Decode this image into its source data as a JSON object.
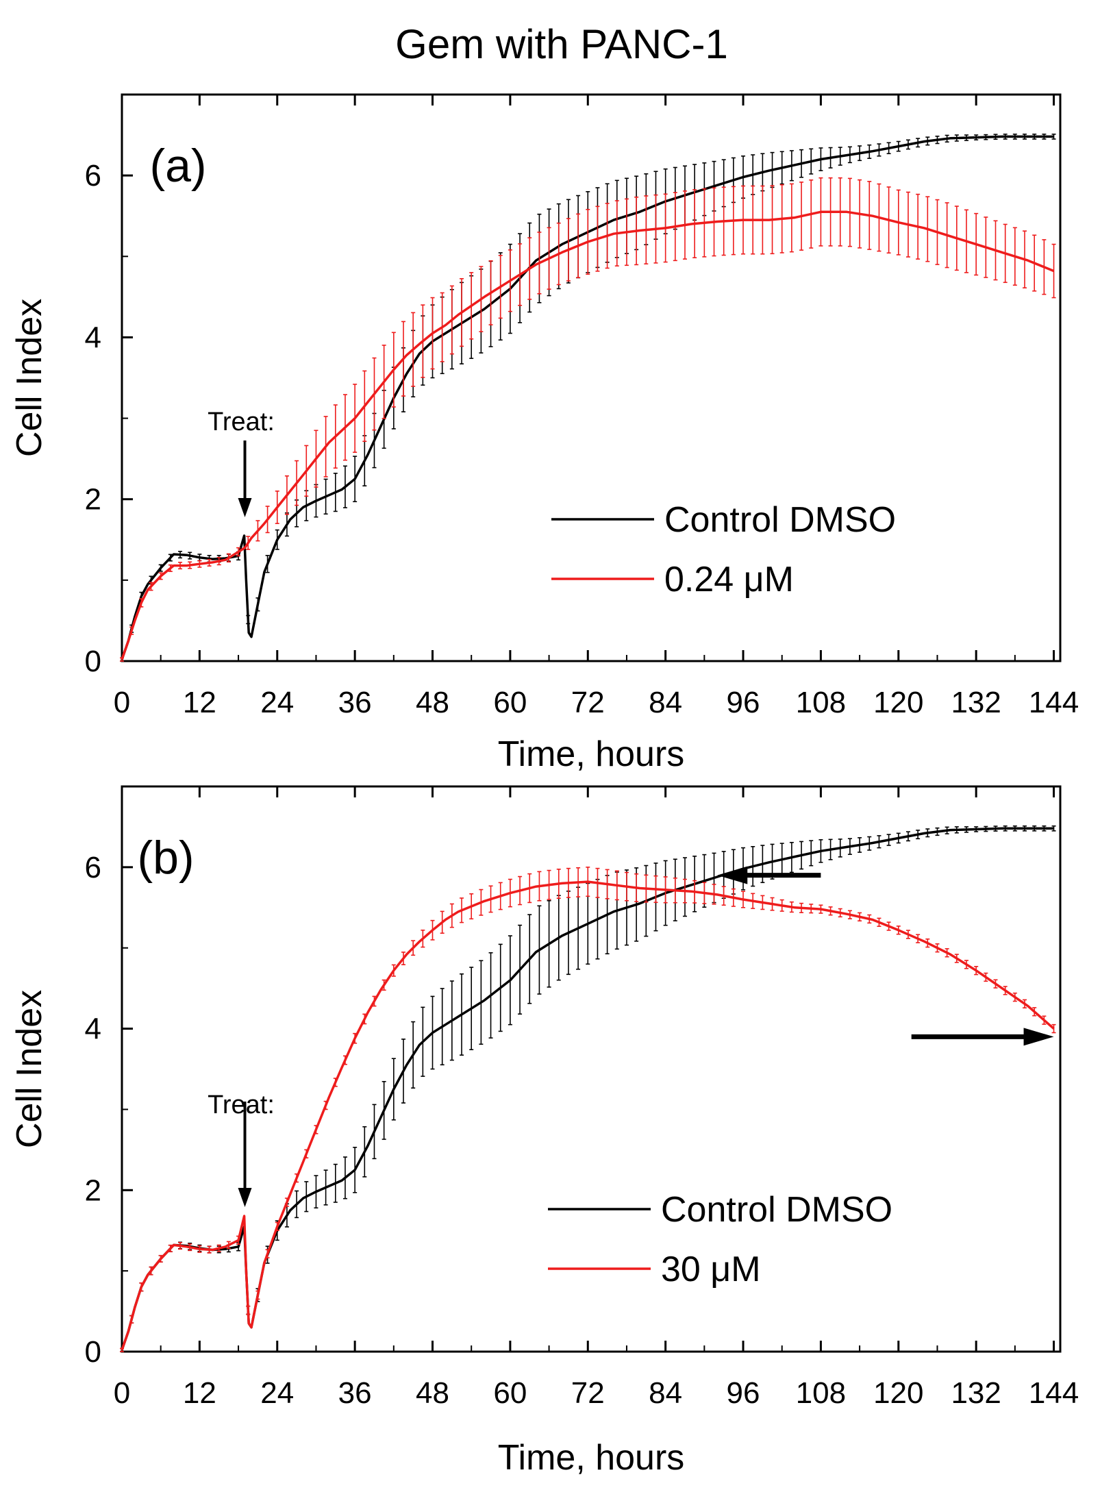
{
  "figure": {
    "title": "Gem with PANC-1"
  },
  "colors": {
    "control": "#000000",
    "treatment": "#ee1c1c",
    "axis": "#000000",
    "background": "#ffffff"
  },
  "chart_data": [
    {
      "type": "line",
      "panel_label": "(a)",
      "xlabel": "Time, hours",
      "ylabel": "Cell Index",
      "xlim": [
        0,
        145
      ],
      "ylim": [
        0,
        7
      ],
      "xticks": [
        0,
        12,
        24,
        36,
        48,
        60,
        72,
        84,
        96,
        108,
        120,
        132,
        144
      ],
      "yticks": [
        0,
        2,
        4,
        6
      ],
      "annotation": {
        "text": "Treat:",
        "x": 19
      },
      "legend": {
        "placement": "lower-right",
        "entries": [
          "Control DMSO",
          "0.24 μM"
        ]
      },
      "series": [
        {
          "name": "Control DMSO",
          "color": "#000000",
          "x": [
            0,
            1,
            2,
            3,
            4,
            6,
            8,
            10,
            12,
            14,
            16,
            18,
            18.9,
            19.2,
            19.6,
            20,
            21,
            22,
            24,
            26,
            28,
            30,
            32,
            34,
            36,
            38,
            40,
            42,
            44,
            46,
            48,
            50,
            52,
            56,
            60,
            64,
            68,
            72,
            76,
            80,
            84,
            88,
            92,
            96,
            100,
            104,
            108,
            112,
            116,
            120,
            124,
            128,
            132,
            136,
            140,
            144
          ],
          "y": [
            0.02,
            0.25,
            0.55,
            0.8,
            0.95,
            1.15,
            1.32,
            1.31,
            1.28,
            1.26,
            1.27,
            1.3,
            1.55,
            1.0,
            0.35,
            0.3,
            0.7,
            1.1,
            1.5,
            1.75,
            1.9,
            1.98,
            2.05,
            2.12,
            2.25,
            2.55,
            2.9,
            3.25,
            3.55,
            3.8,
            3.95,
            4.05,
            4.15,
            4.35,
            4.6,
            4.95,
            5.15,
            5.3,
            5.45,
            5.55,
            5.68,
            5.78,
            5.88,
            5.98,
            6.06,
            6.13,
            6.2,
            6.25,
            6.3,
            6.36,
            6.42,
            6.46,
            6.47,
            6.48,
            6.48,
            6.48
          ],
          "err": [
            0.02,
            0.04,
            0.05,
            0.05,
            0.05,
            0.04,
            0.04,
            0.04,
            0.04,
            0.04,
            0.04,
            0.05,
            0.05,
            0.05,
            0.05,
            0.05,
            0.08,
            0.1,
            0.12,
            0.15,
            0.18,
            0.2,
            0.22,
            0.25,
            0.28,
            0.32,
            0.35,
            0.38,
            0.4,
            0.42,
            0.45,
            0.48,
            0.5,
            0.52,
            0.55,
            0.55,
            0.52,
            0.5,
            0.48,
            0.45,
            0.4,
            0.35,
            0.3,
            0.26,
            0.22,
            0.18,
            0.14,
            0.1,
            0.08,
            0.06,
            0.05,
            0.04,
            0.03,
            0.03,
            0.03,
            0.03
          ]
        },
        {
          "name": "0.24 μM",
          "color": "#ee1c1c",
          "x": [
            0,
            1,
            2,
            3,
            4,
            6,
            8,
            10,
            12,
            14,
            16,
            18,
            19,
            20,
            22,
            24,
            26,
            28,
            30,
            32,
            34,
            36,
            38,
            40,
            42,
            44,
            46,
            48,
            50,
            52,
            56,
            60,
            64,
            68,
            72,
            76,
            80,
            84,
            88,
            92,
            96,
            100,
            104,
            108,
            112,
            116,
            120,
            124,
            128,
            132,
            136,
            140,
            144
          ],
          "y": [
            0.02,
            0.25,
            0.5,
            0.72,
            0.88,
            1.05,
            1.18,
            1.18,
            1.2,
            1.22,
            1.25,
            1.35,
            1.4,
            1.52,
            1.7,
            1.9,
            2.1,
            2.3,
            2.5,
            2.7,
            2.85,
            3.0,
            3.2,
            3.4,
            3.6,
            3.78,
            3.92,
            4.05,
            4.15,
            4.28,
            4.5,
            4.7,
            4.9,
            5.05,
            5.18,
            5.28,
            5.32,
            5.35,
            5.4,
            5.43,
            5.45,
            5.45,
            5.48,
            5.55,
            5.55,
            5.5,
            5.42,
            5.35,
            5.25,
            5.15,
            5.05,
            4.95,
            4.82
          ],
          "err": [
            0.02,
            0.04,
            0.05,
            0.05,
            0.05,
            0.04,
            0.04,
            0.04,
            0.04,
            0.04,
            0.05,
            0.05,
            0.06,
            0.1,
            0.15,
            0.2,
            0.25,
            0.3,
            0.35,
            0.38,
            0.4,
            0.42,
            0.44,
            0.45,
            0.46,
            0.46,
            0.45,
            0.44,
            0.42,
            0.42,
            0.4,
            0.38,
            0.38,
            0.38,
            0.4,
            0.4,
            0.42,
            0.42,
            0.42,
            0.42,
            0.42,
            0.42,
            0.42,
            0.42,
            0.42,
            0.42,
            0.4,
            0.4,
            0.4,
            0.38,
            0.36,
            0.35,
            0.33
          ]
        }
      ]
    },
    {
      "type": "line",
      "panel_label": "(b)",
      "xlabel": "Time, hours",
      "ylabel": "Cell Index",
      "xlim": [
        0,
        145
      ],
      "ylim": [
        0,
        7
      ],
      "xticks": [
        0,
        12,
        24,
        36,
        48,
        60,
        72,
        84,
        96,
        108,
        120,
        132,
        144
      ],
      "yticks": [
        0,
        2,
        4,
        6
      ],
      "annotation": {
        "text": "Treat:",
        "x": 19
      },
      "legend": {
        "placement": "lower-right",
        "entries": [
          "Control DMSO",
          "30 μM"
        ]
      },
      "arrows": [
        {
          "from": [
            108,
            5.9
          ],
          "to": [
            92,
            5.9
          ],
          "direction": "left"
        },
        {
          "from": [
            122,
            3.9
          ],
          "to": [
            144,
            3.9
          ],
          "direction": "right"
        }
      ],
      "series": [
        {
          "name": "Control DMSO",
          "color": "#000000",
          "x": [
            0,
            1,
            2,
            3,
            4,
            6,
            8,
            10,
            12,
            14,
            16,
            18,
            18.9,
            19.2,
            19.6,
            20,
            21,
            22,
            24,
            26,
            28,
            30,
            32,
            34,
            36,
            38,
            40,
            42,
            44,
            46,
            48,
            50,
            52,
            56,
            60,
            64,
            68,
            72,
            76,
            80,
            84,
            88,
            92,
            96,
            100,
            104,
            108,
            112,
            116,
            120,
            124,
            128,
            132,
            136,
            140,
            144
          ],
          "y": [
            0.02,
            0.25,
            0.55,
            0.8,
            0.95,
            1.15,
            1.32,
            1.31,
            1.28,
            1.26,
            1.27,
            1.3,
            1.55,
            1.0,
            0.35,
            0.3,
            0.7,
            1.1,
            1.5,
            1.75,
            1.9,
            1.98,
            2.05,
            2.12,
            2.25,
            2.55,
            2.9,
            3.25,
            3.55,
            3.8,
            3.95,
            4.05,
            4.15,
            4.35,
            4.6,
            4.95,
            5.15,
            5.3,
            5.45,
            5.55,
            5.68,
            5.78,
            5.88,
            5.98,
            6.06,
            6.13,
            6.2,
            6.25,
            6.3,
            6.36,
            6.42,
            6.46,
            6.47,
            6.48,
            6.48,
            6.48
          ],
          "err": [
            0.02,
            0.04,
            0.05,
            0.05,
            0.05,
            0.04,
            0.04,
            0.04,
            0.04,
            0.04,
            0.04,
            0.05,
            0.05,
            0.05,
            0.05,
            0.05,
            0.08,
            0.1,
            0.12,
            0.15,
            0.18,
            0.2,
            0.22,
            0.25,
            0.28,
            0.32,
            0.35,
            0.38,
            0.4,
            0.42,
            0.45,
            0.48,
            0.5,
            0.52,
            0.55,
            0.55,
            0.52,
            0.5,
            0.48,
            0.45,
            0.4,
            0.35,
            0.3,
            0.26,
            0.22,
            0.18,
            0.14,
            0.1,
            0.08,
            0.06,
            0.05,
            0.04,
            0.03,
            0.03,
            0.03,
            0.03
          ]
        },
        {
          "name": "30 μM",
          "color": "#ee1c1c",
          "x": [
            0,
            1,
            2,
            3,
            4,
            6,
            8,
            10,
            12,
            14,
            16,
            18,
            18.9,
            19.2,
            19.6,
            20,
            21,
            22,
            24,
            26,
            28,
            30,
            32,
            34,
            36,
            38,
            40,
            42,
            44,
            46,
            48,
            50,
            52,
            56,
            60,
            64,
            68,
            72,
            76,
            80,
            84,
            88,
            92,
            96,
            100,
            104,
            108,
            112,
            116,
            120,
            124,
            128,
            132,
            136,
            140,
            144
          ],
          "y": [
            0.02,
            0.25,
            0.55,
            0.8,
            0.95,
            1.15,
            1.32,
            1.3,
            1.27,
            1.26,
            1.3,
            1.38,
            1.68,
            1.0,
            0.35,
            0.3,
            0.7,
            1.1,
            1.55,
            1.95,
            2.35,
            2.75,
            3.15,
            3.52,
            3.88,
            4.2,
            4.48,
            4.72,
            4.92,
            5.08,
            5.22,
            5.35,
            5.45,
            5.58,
            5.68,
            5.76,
            5.8,
            5.82,
            5.78,
            5.74,
            5.72,
            5.7,
            5.66,
            5.6,
            5.55,
            5.5,
            5.48,
            5.42,
            5.35,
            5.22,
            5.08,
            4.92,
            4.72,
            4.5,
            4.28,
            4.0
          ],
          "err": [
            0.02,
            0.04,
            0.05,
            0.05,
            0.05,
            0.04,
            0.04,
            0.04,
            0.04,
            0.04,
            0.04,
            0.05,
            0.05,
            0.05,
            0.05,
            0.05,
            0.05,
            0.05,
            0.05,
            0.05,
            0.05,
            0.05,
            0.05,
            0.05,
            0.06,
            0.06,
            0.06,
            0.07,
            0.08,
            0.1,
            0.12,
            0.14,
            0.15,
            0.16,
            0.17,
            0.18,
            0.18,
            0.18,
            0.18,
            0.17,
            0.16,
            0.14,
            0.12,
            0.1,
            0.08,
            0.06,
            0.05,
            0.05,
            0.05,
            0.05,
            0.05,
            0.05,
            0.05,
            0.05,
            0.05,
            0.05
          ]
        }
      ]
    }
  ]
}
